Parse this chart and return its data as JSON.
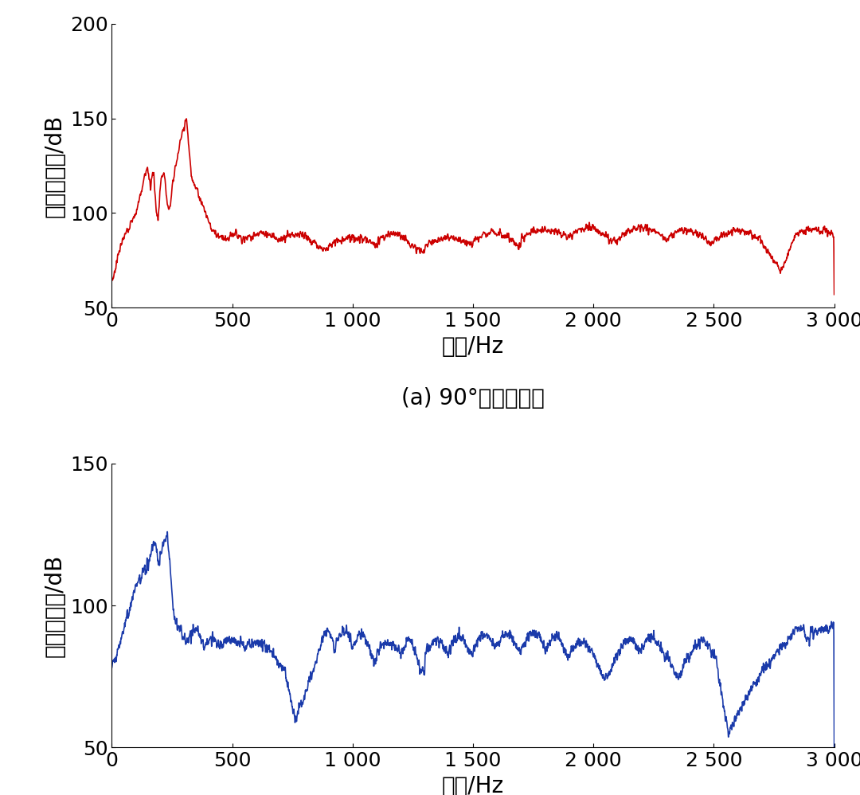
{
  "top_plot": {
    "color": "#cc0000",
    "ylabel": "散射声压级/dB",
    "xlabel": "频率/Hz",
    "caption": "(a) 90°水平方向角",
    "ylim": [
      50,
      200
    ],
    "yticks": [
      50,
      100,
      150,
      200
    ],
    "xlim": [
      0,
      3000
    ],
    "xticks": [
      0,
      500,
      1000,
      1500,
      2000,
      2500,
      3000
    ],
    "xticklabels": [
      "0",
      "500",
      "1 000",
      "1 500",
      "2 000",
      "2 500",
      "3 000"
    ]
  },
  "bottom_plot": {
    "color": "#1a3aaa",
    "ylabel": "散射声压级/dB",
    "xlabel": "频率/Hz",
    "caption": "(b) 0°水平方向角",
    "ylim": [
      50,
      150
    ],
    "yticks": [
      50,
      100,
      150
    ],
    "xlim": [
      0,
      3000
    ],
    "xticks": [
      0,
      500,
      1000,
      1500,
      2000,
      2500,
      3000
    ],
    "xticklabels": [
      "0",
      "500",
      "1 000",
      "1 500",
      "2 000",
      "2 500",
      "3 000"
    ]
  },
  "background_color": "#ffffff",
  "linewidth": 1.2,
  "caption_fontsize": 20,
  "label_fontsize": 20,
  "tick_fontsize": 18
}
